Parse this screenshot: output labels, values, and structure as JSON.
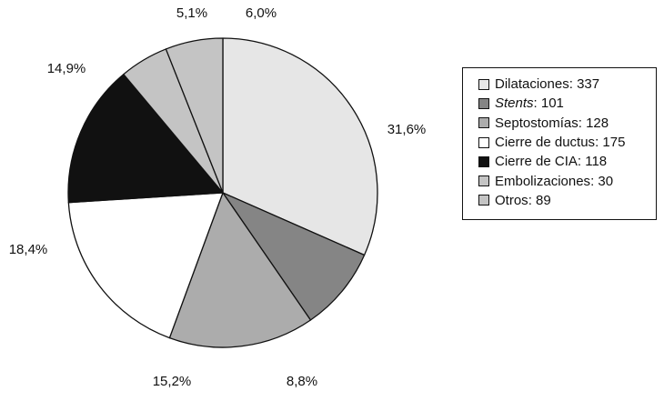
{
  "chart_data": {
    "type": "pie",
    "slices": [
      {
        "label": "Dilataciones",
        "legend_label": "Dilataciones",
        "count": "337",
        "value": 31.6,
        "pct_label": "31,6%",
        "color": "#e6e6e6"
      },
      {
        "label": "Stents",
        "legend_label": "Stents",
        "italic": true,
        "count": "101",
        "value": 8.8,
        "pct_label": "8,8%",
        "color": "#858585"
      },
      {
        "label": "Septostomías",
        "legend_label": "Septostomías",
        "count": "128",
        "value": 15.2,
        "pct_label": "15,2%",
        "color": "#acacac"
      },
      {
        "label": "Cierre de ductus",
        "legend_label": "Cierre de ductus",
        "count": "175",
        "value": 18.4,
        "pct_label": "18,4%",
        "color": "#ffffff"
      },
      {
        "label": "Cierre de CIA",
        "legend_label": "Cierre de CIA",
        "count": "118",
        "value": 14.9,
        "pct_label": "14,9%",
        "color": "#111111"
      },
      {
        "label": "Embolizaciones",
        "legend_label": "Embolizaciones",
        "count": "30",
        "value": 5.1,
        "pct_label": "5,1%",
        "color": "#c4c4c4"
      },
      {
        "label": "Otros",
        "legend_label": "Otros",
        "count": "89",
        "value": 6.0,
        "pct_label": "6,0%",
        "color": "#c4c4c4"
      }
    ],
    "start_angle": "12 o'clock",
    "direction": "clockwise",
    "legend_position": "right"
  }
}
